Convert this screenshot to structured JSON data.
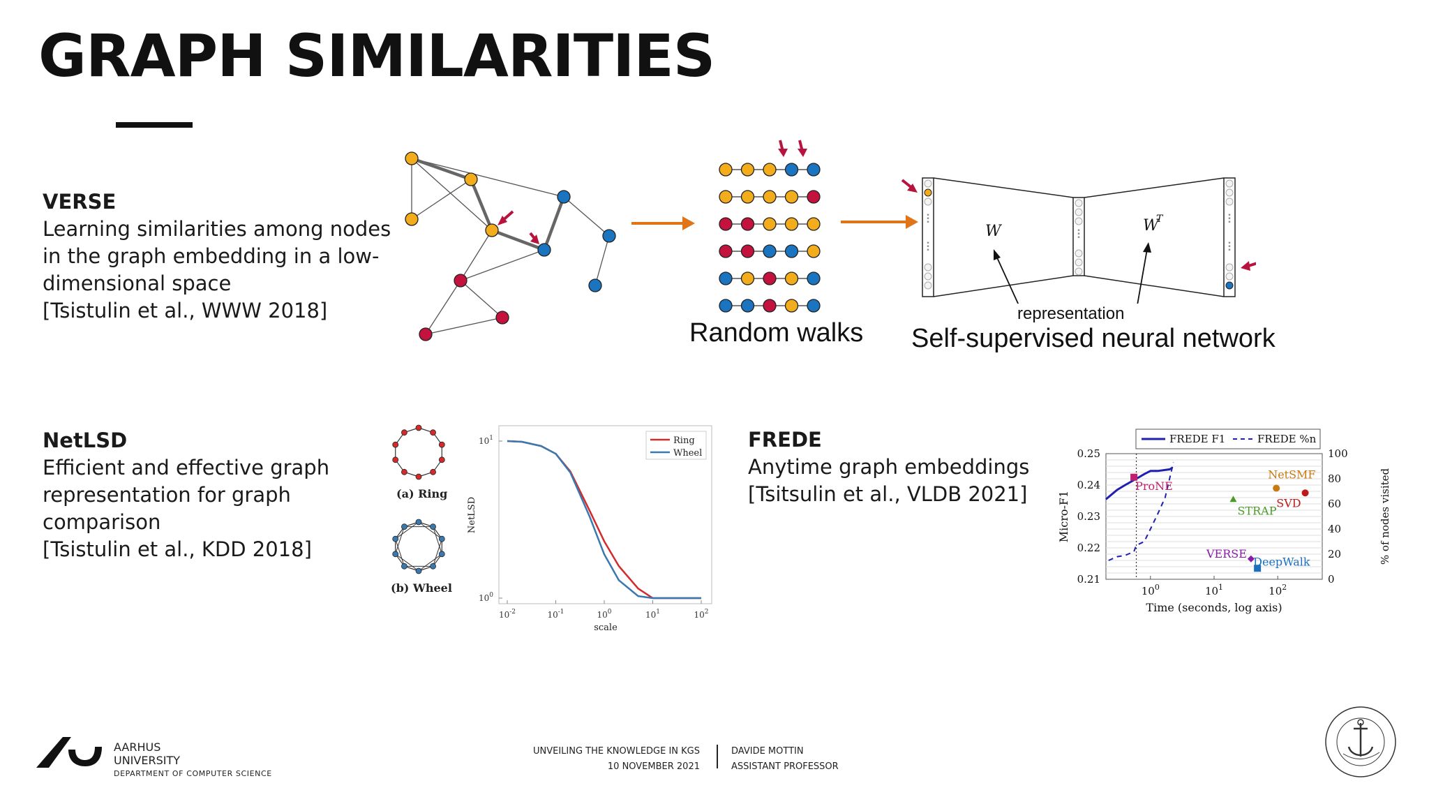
{
  "slide": {
    "title": "GRAPH SIMILARITIES"
  },
  "verse": {
    "heading": "VERSE",
    "line1": "Learning similarities among nodes",
    "line2": "in the graph embedding in a low-",
    "line3": "dimensional space",
    "citation": "[Tsistulin et al., WWW 2018]",
    "random_walks_label": "Random walks",
    "representation_label": "representation",
    "network_label": "Self-supervised neural network",
    "w_label": "W",
    "wt_label": "W",
    "wt_sup": "T"
  },
  "netlsd": {
    "heading": "NetLSD",
    "line1": "Efficient and effective graph",
    "line2": "representation for graph",
    "line3": "comparison",
    "citation": "[Tsistulin et al., KDD 2018]",
    "ring_caption": "(a) Ring",
    "wheel_caption": "(b) Wheel"
  },
  "frede": {
    "heading": "FREDE",
    "line1": "Anytime graph embeddings",
    "citation": "[Tsitsulin et al., VLDB 2021]"
  },
  "footer": {
    "university_line1": "AARHUS",
    "university_line2": "UNIVERSITY",
    "department": "DEPARTMENT OF COMPUTER SCIENCE",
    "talk_title": "UNVEILING THE KNOWLEDGE IN KGS",
    "date": "10 NOVEMBER 2021",
    "speaker": "DAVIDE MOTTIN",
    "role": "ASSISTANT PROFESSOR",
    "seal_text": "SOLIDUM PETIT IN PROFUNDIS · UNIVERSITAS ARHUSIENSIS"
  },
  "colors": {
    "orange_node": "#f2ac1c",
    "crimson_node": "#c4123f",
    "blue_node": "#1a74c0",
    "arrow_orange": "#e07418",
    "arrow_crimson": "#b8123e",
    "ring_red": "#d42a2a",
    "wheel_blue": "#3a78b0"
  },
  "chart_data": [
    {
      "type": "line",
      "xlabel": "scale",
      "ylabel": "NetLSD",
      "x_scale": "log",
      "y_scale": "log",
      "xlim": [
        0.01,
        100
      ],
      "ylim": [
        1,
        10
      ],
      "x_ticks": [
        "10^{-2}",
        "10^{-1}",
        "10^{0}",
        "10^{1}",
        "10^{2}"
      ],
      "y_ticks": [
        "10^{0}",
        "10^{1}"
      ],
      "legend_position": "top-right",
      "series": [
        {
          "name": "Ring",
          "color": "#d42a2a",
          "x": [
            0.01,
            0.02,
            0.05,
            0.1,
            0.2,
            0.5,
            1,
            2,
            5,
            10,
            20,
            50,
            100
          ],
          "values": [
            10,
            9.9,
            9.3,
            8.3,
            6.4,
            3.6,
            2.3,
            1.6,
            1.15,
            1.0,
            1.0,
            1.0,
            1.0
          ]
        },
        {
          "name": "Wheel",
          "color": "#3a78b0",
          "x": [
            0.01,
            0.02,
            0.05,
            0.1,
            0.2,
            0.5,
            1,
            2,
            5,
            10,
            20,
            50,
            100
          ],
          "values": [
            10,
            9.9,
            9.3,
            8.3,
            6.3,
            3.3,
            1.9,
            1.3,
            1.03,
            1.0,
            1.0,
            1.0,
            1.0
          ]
        }
      ]
    },
    {
      "type": "line",
      "xlabel": "Time (seconds, log axis)",
      "ylabel": "Micro-F1",
      "y2label": "% of nodes visited",
      "x_scale": "log",
      "xlim": [
        0.2,
        500
      ],
      "ylim": [
        0.21,
        0.25
      ],
      "y2lim": [
        0,
        100
      ],
      "x_ticks": [
        "10^{0}",
        "10^{1}",
        "10^{2}"
      ],
      "y_ticks": [
        "0.21",
        "0.22",
        "0.23",
        "0.24",
        "0.25"
      ],
      "y2_ticks": [
        "0",
        "20",
        "40",
        "60",
        "80",
        "100"
      ],
      "legend_position": "top",
      "series": [
        {
          "name": "FREDE F1",
          "color": "#1f1fb0",
          "style": "solid",
          "x": [
            0.2,
            0.3,
            0.4,
            0.6,
            0.8,
            1.0,
            1.3,
            1.7,
            2.0,
            2.2
          ],
          "values": [
            0.2355,
            0.2385,
            0.24,
            0.242,
            0.2435,
            0.2445,
            0.2445,
            0.2448,
            0.245,
            0.2455
          ]
        },
        {
          "name": "FREDE %n",
          "color": "#1f1fb0",
          "style": "dashed",
          "x": [
            0.22,
            0.3,
            0.4,
            0.55,
            0.6,
            0.8,
            1.0,
            1.3,
            1.7,
            2.0,
            2.3
          ],
          "values": [
            15,
            18,
            19,
            22,
            27,
            30,
            40,
            52,
            65,
            80,
            93
          ]
        }
      ],
      "points": [
        {
          "label": "ProNE",
          "x": 0.55,
          "y": 0.2425,
          "color": "#c02070",
          "marker": "square"
        },
        {
          "label": "NetSMF",
          "x": 95,
          "y": 0.239,
          "color": "#c87a12",
          "marker": "circle"
        },
        {
          "label": "SVD",
          "x": 270,
          "y": 0.2375,
          "color": "#c01818",
          "marker": "circle"
        },
        {
          "label": "STRAP",
          "x": 20,
          "y": 0.2355,
          "color": "#4a9a28",
          "marker": "triangle"
        },
        {
          "label": "VERSE",
          "x": 38,
          "y": 0.2165,
          "color": "#8a1aa8",
          "marker": "diamond"
        },
        {
          "label": "DeepWalk",
          "x": 48,
          "y": 0.2135,
          "color": "#1a6ec0",
          "marker": "square"
        }
      ],
      "vline_x": 0.6
    }
  ]
}
